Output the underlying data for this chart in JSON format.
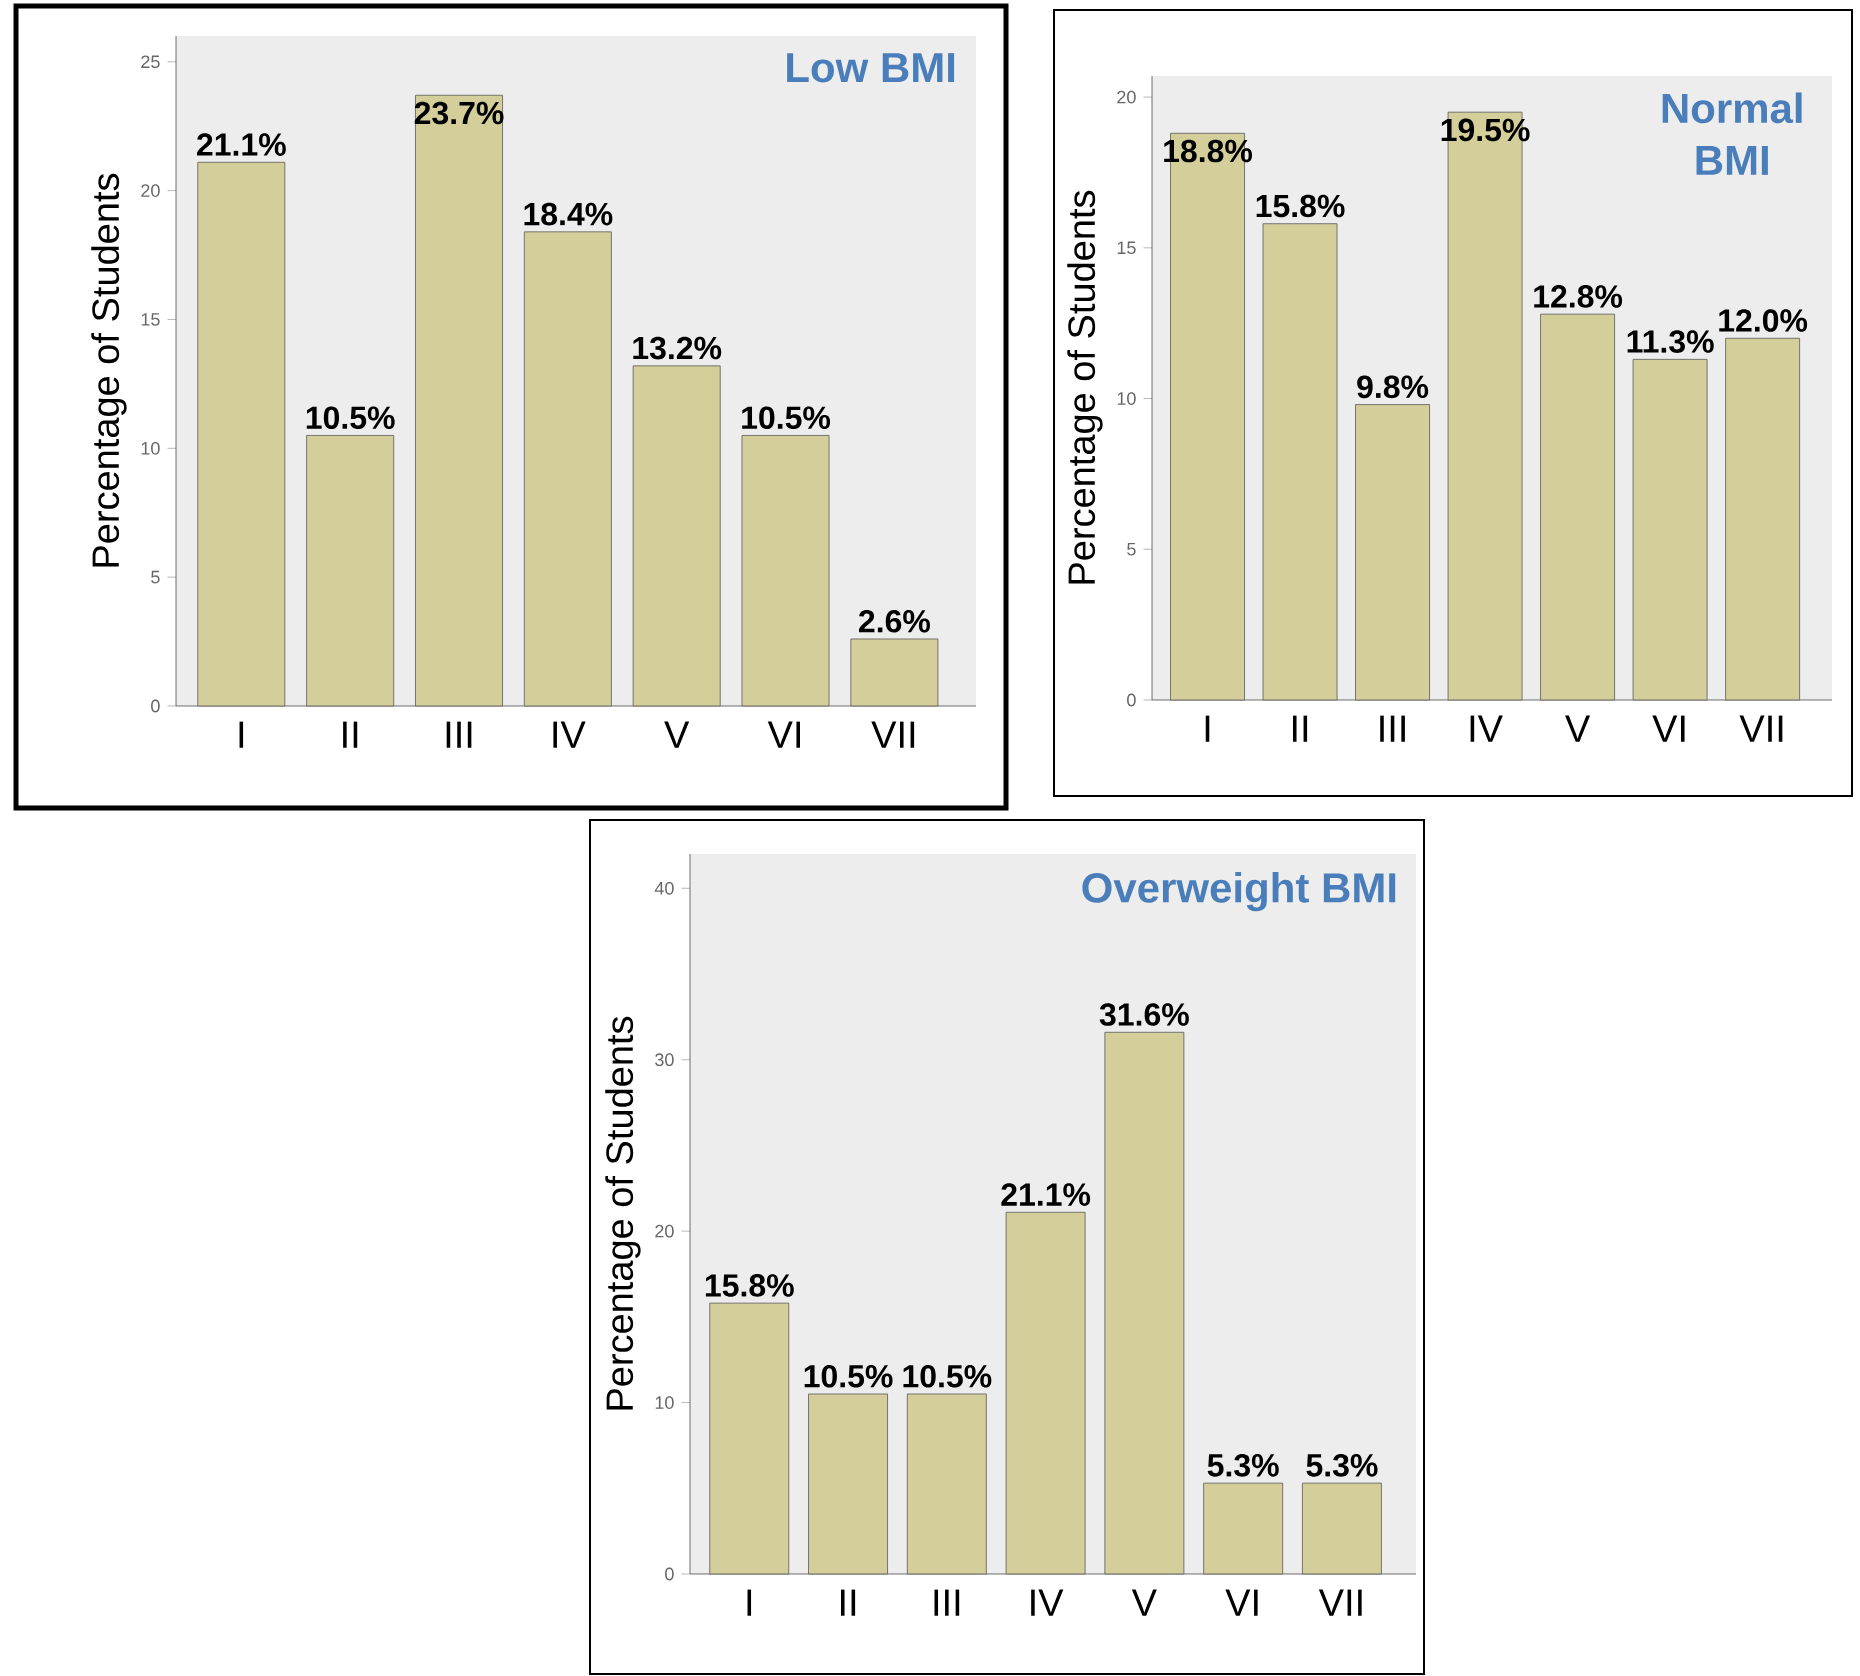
{
  "chart_data": [
    {
      "type": "bar",
      "title": "Low BMI",
      "ylabel": "Percentage of Students",
      "categories": [
        "I",
        "II",
        "III",
        "IV",
        "V",
        "VI",
        "VII"
      ],
      "values": [
        21.1,
        10.5,
        23.7,
        18.4,
        13.2,
        10.5,
        2.6
      ],
      "value_labels": [
        "21.1%",
        "10.5%",
        "23.7%",
        "18.4%",
        "13.2%",
        "10.5%",
        "2.6%"
      ],
      "color": "#d4cf9a",
      "ylim": [
        0,
        26
      ],
      "yticks": [
        0,
        5,
        10,
        15,
        20,
        25
      ]
    },
    {
      "type": "bar",
      "title": "Normal BMI",
      "ylabel": "Percentage of Students",
      "categories": [
        "I",
        "II",
        "III",
        "IV",
        "V",
        "VI",
        "VII"
      ],
      "values": [
        18.8,
        15.8,
        9.8,
        19.5,
        12.8,
        11.3,
        12.0
      ],
      "value_labels": [
        "18.8%",
        "15.8%",
        "9.8%",
        "19.5%",
        "12.8%",
        "11.3%",
        "12.0%"
      ],
      "color": "#d4cf9a",
      "ylim": [
        0,
        20.7
      ],
      "yticks": [
        0,
        5,
        10,
        15,
        20
      ]
    },
    {
      "type": "bar",
      "title": "Overweight BMI",
      "ylabel": "Percentage of Students",
      "categories": [
        "I",
        "II",
        "III",
        "IV",
        "V",
        "VI",
        "VII"
      ],
      "values": [
        15.8,
        10.5,
        10.5,
        21.1,
        31.6,
        5.3,
        5.3
      ],
      "value_labels": [
        "15.8%",
        "10.5%",
        "10.5%",
        "21.1%",
        "31.6%",
        "5.3%",
        "5.3%"
      ],
      "color": "#d4cf9a",
      "ylim": [
        0,
        42
      ],
      "yticks": [
        0,
        10,
        20,
        30,
        40
      ]
    }
  ]
}
